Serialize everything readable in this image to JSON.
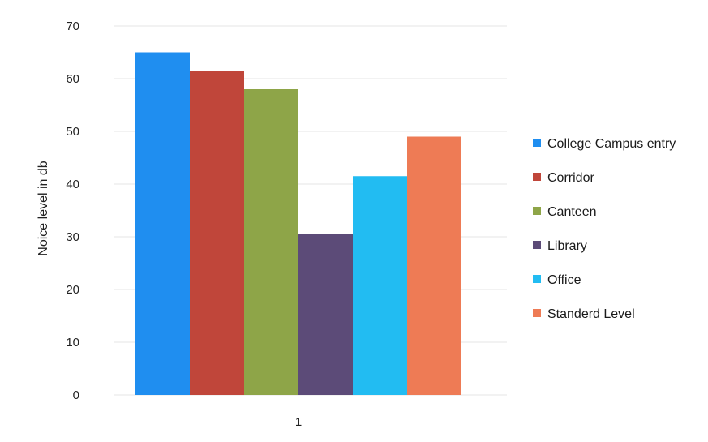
{
  "chart_data": {
    "type": "bar",
    "title": "",
    "xlabel": "",
    "ylabel": "Noice level in db",
    "categories": [
      "1"
    ],
    "ylim": [
      0,
      70
    ],
    "yticks": [
      0,
      10,
      20,
      30,
      40,
      50,
      60,
      70
    ],
    "grid": true,
    "legend_position": "right",
    "series": [
      {
        "name": "College Campus entry",
        "values": [
          65
        ],
        "color": "#1f8ef0"
      },
      {
        "name": "Corridor",
        "values": [
          61.5
        ],
        "color": "#c0463a"
      },
      {
        "name": "Canteen",
        "values": [
          58
        ],
        "color": "#8ea548"
      },
      {
        "name": "Library",
        "values": [
          30.5
        ],
        "color": "#5c4b78"
      },
      {
        "name": "Office",
        "values": [
          41.5
        ],
        "color": "#22bcf2"
      },
      {
        "name": "Standerd Level",
        "values": [
          49
        ],
        "color": "#ee7b55"
      }
    ]
  }
}
